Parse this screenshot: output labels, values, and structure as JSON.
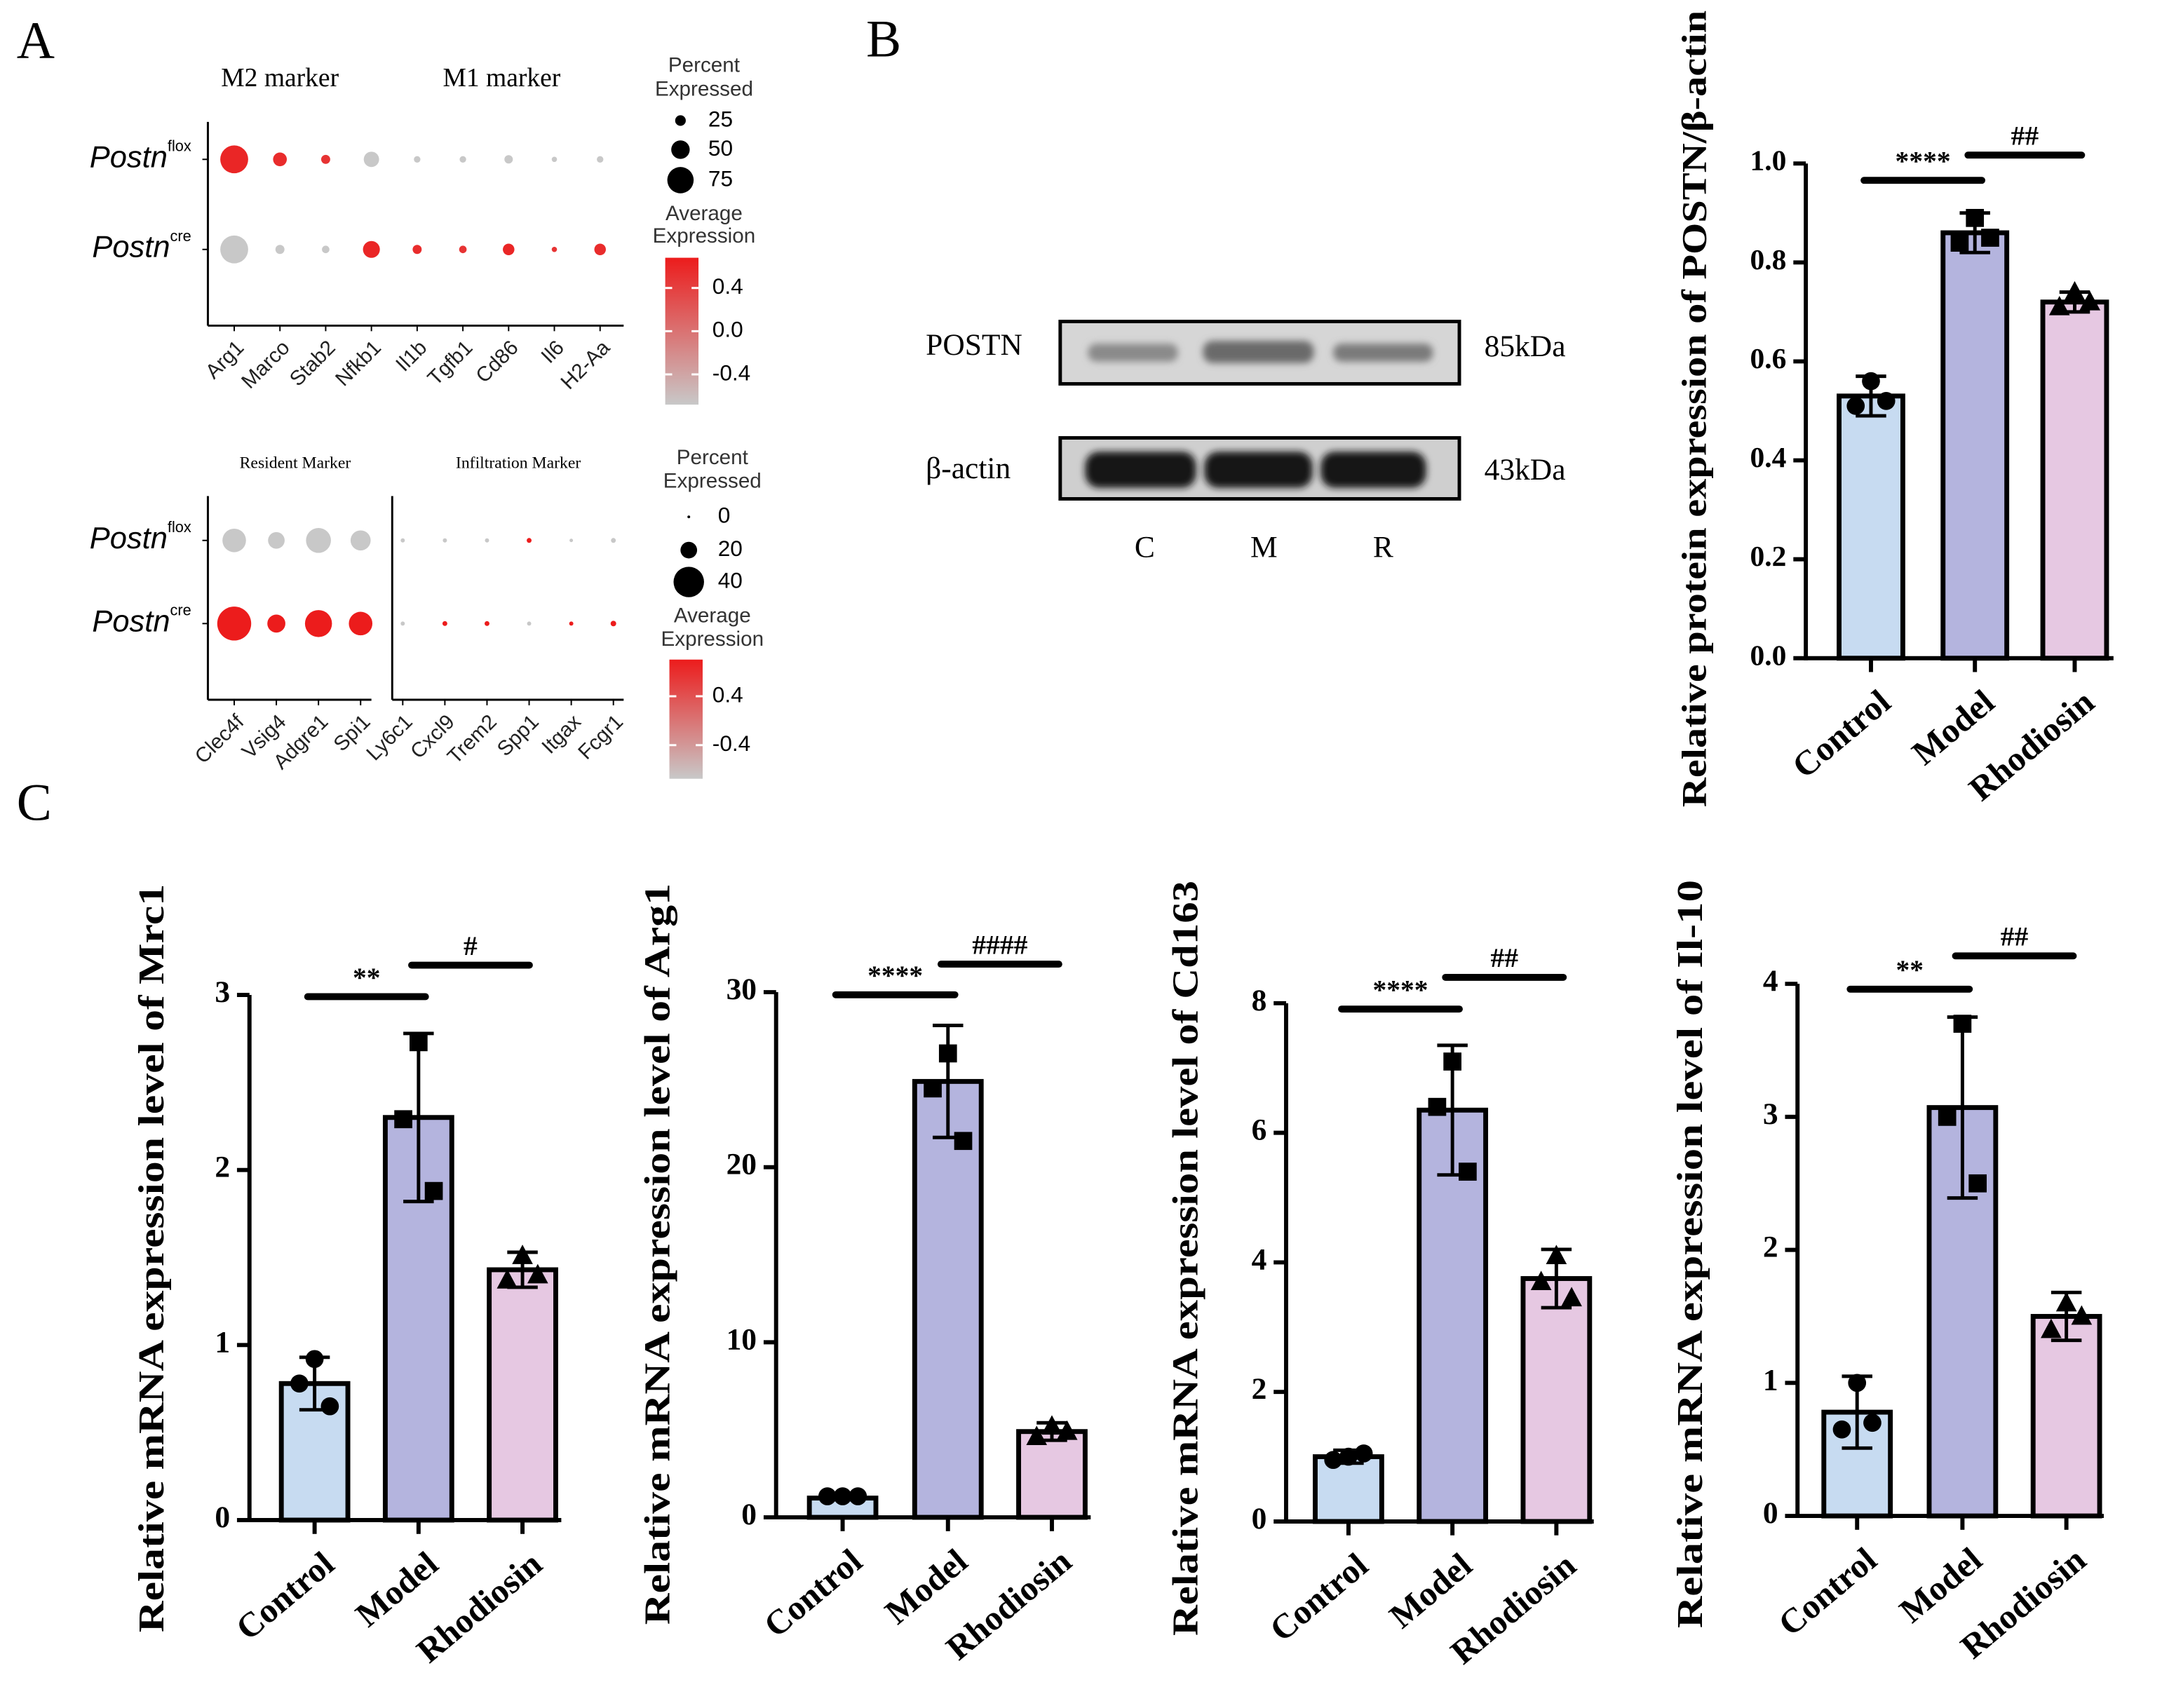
{
  "panel_labels": [
    "A",
    "B",
    "C"
  ],
  "blot": {
    "rows": [
      {
        "label": "POSTN",
        "size": "85kDa"
      },
      {
        "label": "β-actin",
        "size": "43kDa"
      }
    ],
    "lanes": [
      "C",
      "M",
      "R"
    ]
  },
  "chart_data": [
    {
      "type": "dot",
      "groups": [
        "M2 marker",
        "M1 marker"
      ],
      "categories": [
        "Arg1",
        "Marco",
        "Stab2",
        "Nfkb1",
        "Il1b",
        "Tgfb1",
        "Cd86",
        "Il6",
        "H2-Aa"
      ],
      "series": [
        {
          "name": "Postn",
          "superscript": "flox",
          "percent": [
            80,
            35,
            20,
            40,
            12,
            12,
            18,
            8,
            12
          ],
          "expression": [
            0.6,
            0.55,
            0.5,
            -0.68,
            -0.68,
            -0.68,
            -0.68,
            -0.68,
            -0.68
          ]
        },
        {
          "name": "Postn",
          "superscript": "cre",
          "percent": [
            80,
            20,
            15,
            45,
            20,
            15,
            28,
            8,
            28
          ],
          "expression": [
            -0.68,
            -0.68,
            -0.68,
            0.6,
            0.55,
            0.5,
            0.6,
            0.5,
            0.55
          ]
        }
      ],
      "size_legend": {
        "title": [
          "Percent",
          "Expressed"
        ],
        "values": [
          25,
          50,
          75
        ]
      },
      "color_legend": {
        "title": [
          "Average",
          "Expression"
        ],
        "lim": [
          -0.68,
          0.68
        ],
        "ticks": [
          0.4,
          {
            "value": 0,
            "label": "0.0"
          },
          -0.4
        ],
        "colors": [
          "#c8c8c8",
          "#ec1c1c"
        ]
      }
    },
    {
      "type": "dot",
      "groups": [
        "Resident Marker",
        "Infiltration Marker"
      ],
      "categories": [
        "Clec4f",
        "Vsig4",
        "Adgre1",
        "Spi1",
        "Ly6c1",
        "Cxcl9",
        "Trem2",
        "Spp1",
        "Itgax",
        "Fcgr1"
      ],
      "series": [
        {
          "name": "Postn",
          "superscript": "flox",
          "percent": [
            30,
            20,
            32,
            25,
            2,
            2,
            2,
            3,
            1,
            3
          ],
          "expression": [
            -0.95,
            -0.95,
            -0.95,
            -0.95,
            -0.95,
            -0.95,
            -0.95,
            1.0,
            -0.95,
            -0.95
          ]
        },
        {
          "name": "Postn",
          "superscript": "cre",
          "percent": [
            45,
            22,
            35,
            30,
            2,
            3,
            3,
            2,
            2,
            4
          ],
          "expression": [
            1.0,
            1.0,
            1.0,
            1.0,
            -0.95,
            1.0,
            1.0,
            -0.95,
            1.0,
            1.0
          ]
        }
      ],
      "size_legend": {
        "title": [
          "Percent",
          "Expressed"
        ],
        "values": [
          0,
          20,
          40
        ]
      },
      "color_legend": {
        "title": [
          "Average",
          "Expression"
        ],
        "lim": [
          -0.95,
          1.0
        ],
        "ticks": [
          0.4,
          -0.4
        ],
        "colors": [
          "#c8c8c8",
          "#ec1c1c"
        ]
      }
    },
    {
      "type": "bar",
      "ylabel": "Relative protein expression of POSTN/β-actin",
      "categories": [
        "Control",
        "Model",
        "Rhodiosin"
      ],
      "values": [
        0.53,
        0.86,
        0.72
      ],
      "errors": [
        0.04,
        0.04,
        0.02
      ],
      "points": [
        [
          0.56,
          0.51,
          0.52
        ],
        [
          0.89,
          0.84,
          0.85
        ],
        [
          0.74,
          0.71,
          0.72
        ]
      ],
      "colors": [
        "#c7dbf1",
        "#b4b4de",
        "#e6c8e2"
      ],
      "markers": [
        "circle",
        "square",
        "triangle"
      ],
      "ylim": [
        0,
        1.0
      ],
      "yticks": [
        {
          "value": 0,
          "label": "0.0"
        },
        0.2,
        0.4,
        0.6,
        0.8,
        {
          "value": 1.0,
          "label": "1.0"
        }
      ],
      "annotations": [
        {
          "text": "****",
          "y": 0.966
        },
        {
          "text": "##",
          "y": 1.017
        }
      ]
    },
    {
      "type": "bar",
      "ylabel": "Relative mRNA expression level of Mrc1",
      "categories": [
        "Control",
        "Model",
        "Rhodiosin"
      ],
      "values": [
        0.78,
        2.3,
        1.43
      ],
      "errors": [
        0.15,
        0.48,
        0.1
      ],
      "points": [
        [
          0.92,
          0.78,
          0.65
        ],
        [
          2.73,
          2.29,
          1.88
        ],
        [
          1.51,
          1.37,
          1.4
        ]
      ],
      "colors": [
        "#c7dbf1",
        "#b4b4de",
        "#e6c8e2"
      ],
      "markers": [
        "circle",
        "square",
        "triangle"
      ],
      "ylim": [
        0,
        3
      ],
      "yticks": [
        0,
        1,
        2,
        3
      ],
      "annotations": [
        {
          "text": "**",
          "y": 2.99
        },
        {
          "text": "#",
          "y": 3.17
        }
      ]
    },
    {
      "type": "bar",
      "ylabel": "Relative mRNA expression level of Arg1",
      "categories": [
        "Control",
        "Model",
        "Rhodiosin"
      ],
      "values": [
        1.1,
        24.9,
        4.9
      ],
      "errors": [
        0.1,
        3.2,
        0.5
      ],
      "points": [
        [
          1.2,
          1.2,
          1.2
        ],
        [
          26.5,
          24.5,
          21.5
        ],
        [
          5.2,
          4.6,
          4.9
        ]
      ],
      "colors": [
        "#c7dbf1",
        "#b4b4de",
        "#e6c8e2"
      ],
      "markers": [
        "circle",
        "square",
        "triangle"
      ],
      "ylim": [
        0,
        30
      ],
      "yticks": [
        0,
        10,
        20,
        30
      ],
      "annotations": [
        {
          "text": "****",
          "y": 29.85
        },
        {
          "text": "####",
          "y": 31.6
        }
      ]
    },
    {
      "type": "bar",
      "ylabel": "Relative mRNA expression level of Cd163",
      "categories": [
        "Control",
        "Model",
        "Rhodiosin"
      ],
      "values": [
        1.0,
        6.35,
        3.75
      ],
      "errors": [
        0.1,
        1.0,
        0.45
      ],
      "points": [
        [
          1.0,
          0.95,
          1.05
        ],
        [
          7.1,
          6.4,
          5.4
        ],
        [
          4.1,
          3.7,
          3.45
        ]
      ],
      "colors": [
        "#c7dbf1",
        "#b4b4de",
        "#e6c8e2"
      ],
      "markers": [
        "circle",
        "square",
        "triangle"
      ],
      "ylim": [
        0,
        8
      ],
      "yticks": [
        0,
        2,
        4,
        6,
        8
      ],
      "annotations": [
        {
          "text": "****",
          "y": 7.91
        },
        {
          "text": "##",
          "y": 8.4
        }
      ]
    },
    {
      "type": "bar",
      "ylabel": "Relative mRNA expression level of Il-10",
      "categories": [
        "Control",
        "Model",
        "Rhodiosin"
      ],
      "values": [
        0.78,
        3.07,
        1.5
      ],
      "errors": [
        0.27,
        0.68,
        0.18
      ],
      "points": [
        [
          1.0,
          0.65,
          0.7
        ],
        [
          3.7,
          3.0,
          2.5
        ],
        [
          1.6,
          1.4,
          1.5
        ]
      ],
      "colors": [
        "#c7dbf1",
        "#b4b4de",
        "#e6c8e2"
      ],
      "markers": [
        "circle",
        "square",
        "triangle"
      ],
      "ylim": [
        0,
        4
      ],
      "yticks": [
        0,
        1,
        2,
        3,
        4
      ],
      "annotations": [
        {
          "text": "**",
          "y": 3.96
        },
        {
          "text": "##",
          "y": 4.21
        }
      ]
    }
  ]
}
